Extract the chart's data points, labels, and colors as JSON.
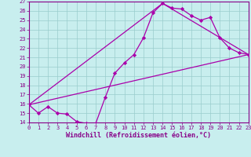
{
  "title": "",
  "xlabel": "Windchill (Refroidissement éolien,°C)",
  "bg_color": "#c8eeee",
  "line_color": "#aa00aa",
  "grid_color": "#99cccc",
  "axis_color": "#880088",
  "ylim": [
    14,
    27
  ],
  "xlim": [
    0,
    23
  ],
  "yticks": [
    14,
    15,
    16,
    17,
    18,
    19,
    20,
    21,
    22,
    23,
    24,
    25,
    26,
    27
  ],
  "xticks": [
    0,
    1,
    2,
    3,
    4,
    5,
    6,
    7,
    8,
    9,
    10,
    11,
    12,
    13,
    14,
    15,
    16,
    17,
    18,
    19,
    20,
    21,
    22,
    23
  ],
  "line1_x": [
    0,
    1,
    2,
    3,
    4,
    5,
    6,
    7,
    8,
    9,
    10,
    11,
    12,
    13,
    14,
    15,
    16,
    17,
    18,
    19,
    20,
    21,
    22,
    23
  ],
  "line1_y": [
    15.9,
    15.0,
    15.7,
    15.0,
    14.9,
    14.1,
    13.9,
    13.9,
    16.7,
    19.3,
    20.4,
    21.3,
    23.1,
    25.8,
    26.8,
    26.3,
    26.2,
    25.5,
    25.0,
    25.3,
    23.1,
    22.0,
    21.5,
    21.3
  ],
  "line2_x": [
    0,
    23
  ],
  "line2_y": [
    15.9,
    21.3
  ],
  "line3_x": [
    0,
    14,
    23
  ],
  "line3_y": [
    15.9,
    26.8,
    21.3
  ],
  "marker": "D",
  "marker_size": 2.2,
  "line_width": 0.9,
  "tick_fontsize": 5.0,
  "label_fontsize": 6.0,
  "tick_color": "#880088",
  "label_color": "#880088"
}
